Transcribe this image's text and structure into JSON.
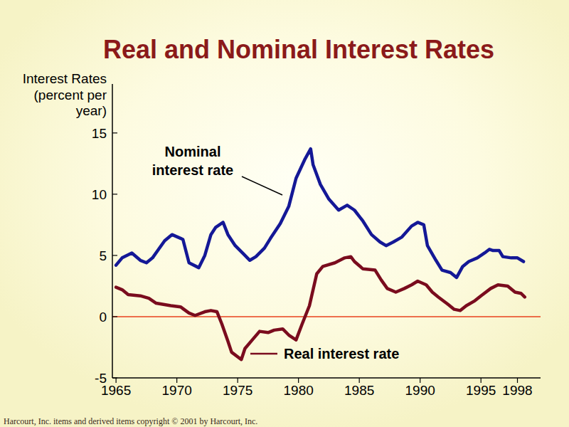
{
  "chart_data": {
    "type": "line",
    "title": "Real and Nominal Interest Rates",
    "y_label": [
      "Interest Rates",
      "(percent per",
      "year)"
    ],
    "source": "Harcourt, Inc. items and derived items copyright © 2001  by Harcourt, Inc.",
    "xlim": [
      1964.7,
      1999.9
    ],
    "xticks": [
      1965,
      1970,
      1975,
      1980,
      1985,
      1990,
      1995,
      1998
    ],
    "ylim": [
      -5,
      19
    ],
    "yticks": [
      -5,
      0,
      5,
      10,
      15
    ],
    "grid": false,
    "reference_lines": [
      {
        "value": 0,
        "color": "#e8401c"
      }
    ],
    "series": [
      {
        "name": "Nominal interest rate",
        "color": "#141896",
        "x": [
          1965.0,
          1965.5,
          1966.3,
          1967.0,
          1967.5,
          1968.0,
          1968.5,
          1969.0,
          1969.6,
          1970.3,
          1970.5,
          1971.0,
          1971.8,
          1972.3,
          1972.8,
          1973.2,
          1973.8,
          1974.2,
          1974.8,
          1975.5,
          1976.0,
          1976.5,
          1977.2,
          1977.7,
          1978.5,
          1979.2,
          1979.8,
          1980.5,
          1981.0,
          1981.2,
          1981.8,
          1982.5,
          1983.3,
          1984.0,
          1984.6,
          1985.3,
          1986.0,
          1986.7,
          1987.2,
          1987.8,
          1988.5,
          1989.3,
          1989.8,
          1990.3,
          1990.6,
          1991.3,
          1991.8,
          1992.5,
          1993.0,
          1993.5,
          1994.0,
          1994.7,
          1995.3,
          1995.7,
          1996.0,
          1996.5,
          1996.8,
          1997.5,
          1998.0,
          1998.5
        ],
        "values": [
          4.2,
          4.8,
          5.2,
          4.6,
          4.4,
          4.8,
          5.5,
          6.2,
          6.7,
          6.4,
          6.3,
          4.4,
          4.0,
          5.0,
          6.7,
          7.3,
          7.7,
          6.7,
          5.8,
          5.1,
          4.6,
          4.9,
          5.6,
          6.4,
          7.6,
          9.0,
          11.3,
          12.8,
          13.7,
          12.4,
          10.8,
          9.6,
          8.7,
          9.1,
          8.7,
          7.8,
          6.7,
          6.1,
          5.8,
          6.1,
          6.5,
          7.4,
          7.7,
          7.5,
          5.8,
          4.6,
          3.8,
          3.6,
          3.2,
          4.1,
          4.5,
          4.8,
          5.2,
          5.5,
          5.4,
          5.4,
          4.9,
          4.8,
          4.8,
          4.5
        ]
      },
      {
        "name": "Real interest rate",
        "color": "#7a0c1e",
        "x": [
          1965.0,
          1965.5,
          1966.0,
          1967.0,
          1967.7,
          1968.3,
          1969.5,
          1970.3,
          1971.0,
          1971.5,
          1972.3,
          1972.8,
          1973.3,
          1973.7,
          1974.2,
          1974.5,
          1975.3,
          1975.6,
          1976.2,
          1976.8,
          1977.5,
          1978.0,
          1978.7,
          1979.2,
          1979.8,
          1980.3,
          1980.9,
          1981.5,
          1982.0,
          1983.0,
          1983.8,
          1984.3,
          1984.6,
          1985.3,
          1986.3,
          1986.8,
          1987.3,
          1988.0,
          1988.7,
          1989.3,
          1989.8,
          1990.5,
          1991.0,
          1991.5,
          1992.3,
          1992.8,
          1993.3,
          1993.8,
          1994.5,
          1995.0,
          1995.8,
          1996.4,
          1997.2,
          1997.8,
          1998.3,
          1998.6
        ],
        "values": [
          2.4,
          2.2,
          1.8,
          1.7,
          1.5,
          1.1,
          0.9,
          0.8,
          0.3,
          0.1,
          0.4,
          0.5,
          0.4,
          -0.6,
          -2.0,
          -2.9,
          -3.5,
          -2.6,
          -1.9,
          -1.2,
          -1.3,
          -1.1,
          -1.0,
          -1.5,
          -1.9,
          -0.6,
          0.9,
          3.5,
          4.1,
          4.4,
          4.8,
          4.9,
          4.5,
          3.9,
          3.8,
          3.0,
          2.3,
          2.0,
          2.3,
          2.6,
          2.9,
          2.6,
          2.0,
          1.6,
          1.0,
          0.6,
          0.5,
          0.9,
          1.3,
          1.7,
          2.3,
          2.6,
          2.5,
          2.0,
          1.9,
          1.6
        ]
      }
    ]
  }
}
